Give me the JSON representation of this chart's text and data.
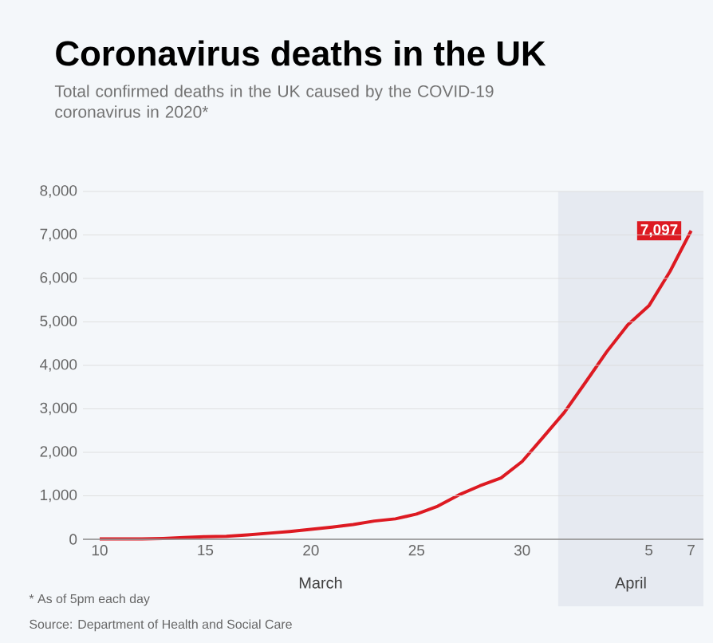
{
  "chart_data": {
    "type": "line",
    "title": "Coronavirus deaths in the UK",
    "subtitle": "Total confirmed deaths in the UK caused by the COVID-19 coronavirus in 2020*",
    "x": [
      "2020-03-10",
      "2020-03-11",
      "2020-03-12",
      "2020-03-13",
      "2020-03-14",
      "2020-03-15",
      "2020-03-16",
      "2020-03-17",
      "2020-03-18",
      "2020-03-19",
      "2020-03-20",
      "2020-03-21",
      "2020-03-22",
      "2020-03-23",
      "2020-03-24",
      "2020-03-25",
      "2020-03-26",
      "2020-03-27",
      "2020-03-28",
      "2020-03-29",
      "2020-03-30",
      "2020-03-31",
      "2020-04-01",
      "2020-04-02",
      "2020-04-03",
      "2020-04-04",
      "2020-04-05",
      "2020-04-06",
      "2020-04-07"
    ],
    "series": [
      {
        "color": "#dd1a22",
        "values": [
          10,
          10,
          10,
          20,
          40,
          60,
          70,
          100,
          140,
          180,
          230,
          280,
          340,
          420,
          470,
          580,
          760,
          1020,
          1230,
          1410,
          1790,
          2350,
          2920,
          3610,
          4310,
          4930,
          5370,
          6160,
          7097
        ],
        "value_labels": [
          null,
          null,
          null,
          null,
          null,
          null,
          null,
          null,
          null,
          null,
          null,
          null,
          null,
          null,
          null,
          null,
          null,
          null,
          null,
          null,
          null,
          null,
          null,
          null,
          null,
          null,
          null,
          null,
          "7,097"
        ]
      }
    ],
    "xlim": [
      "2020-03-09T05:00",
      "2020-04-07T14:00"
    ],
    "ylim": [
      0,
      8000
    ],
    "xticks": [
      {
        "value": "2020-03-10",
        "label": "10"
      },
      {
        "value": "2020-03-15",
        "label": "15"
      },
      {
        "value": "2020-03-20",
        "label": "20"
      },
      {
        "value": "2020-03-25",
        "label": "25"
      },
      {
        "value": "2020-03-30",
        "label": "30"
      },
      {
        "value": "2020-04-05",
        "label": "5"
      },
      {
        "value": "2020-04-07",
        "label": "7"
      }
    ],
    "yticks": [
      {
        "value": 0,
        "label": "0"
      },
      {
        "value": 1000,
        "label": "1,000"
      },
      {
        "value": 2000,
        "label": "2,000"
      },
      {
        "value": 3000,
        "label": "3,000"
      },
      {
        "value": 4000,
        "label": "4,000"
      },
      {
        "value": 5000,
        "label": "5,000"
      },
      {
        "value": 6000,
        "label": "6,000"
      },
      {
        "value": 7000,
        "label": "7,000"
      },
      {
        "value": 8000,
        "label": "8,000"
      }
    ],
    "grid": "y",
    "marker": "none",
    "line_style": "solid",
    "bands": [
      {
        "axis": "x",
        "from": "2020-03-31T17:00",
        "to": "2020-04-07T14:00",
        "label": "April",
        "color": "#e6eaf1"
      }
    ],
    "annotations": [
      "March",
      "* As of 5pm each day",
      "Source: Department of Health and Social Care"
    ]
  }
}
